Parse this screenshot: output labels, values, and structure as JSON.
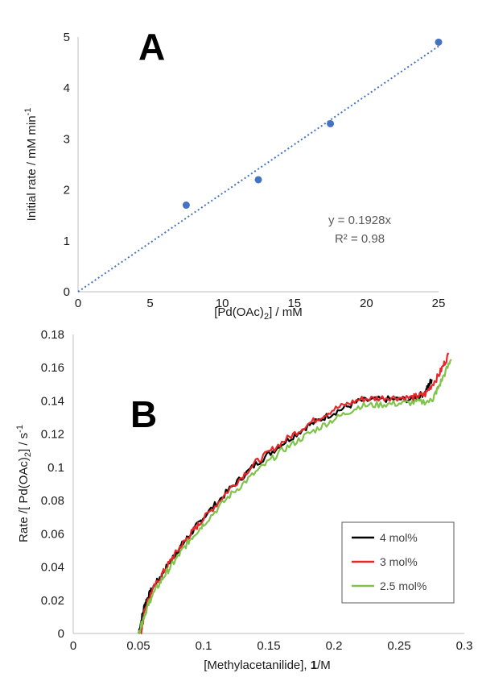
{
  "chart_data": [
    {
      "type": "scatter",
      "panel_label": "A",
      "xlabel": "[Pd(OAc)2] / mM",
      "ylabel": "Initial rate / mM min-1",
      "xlim": [
        0,
        25
      ],
      "ylim": [
        0,
        5
      ],
      "x_ticks": [
        "0",
        "5",
        "10",
        "15",
        "20",
        "25"
      ],
      "y_ticks": [
        "0",
        "1",
        "2",
        "3",
        "4",
        "5"
      ],
      "grid": false,
      "series": [
        {
          "color": "#4472c4",
          "points": [
            {
              "x": 7.5,
              "y": 1.7
            },
            {
              "x": 12.5,
              "y": 2.2
            },
            {
              "x": 17.5,
              "y": 3.3
            },
            {
              "x": 25,
              "y": 4.9
            }
          ]
        }
      ],
      "trendline": {
        "slope": 0.1928,
        "color": "#4472c4",
        "style": "dotted",
        "equation": "y = 0.1928x",
        "r_squared": "R² = 0.98"
      }
    },
    {
      "type": "line",
      "panel_label": "B",
      "xlabel": "[Methylacetanilide], 1/M",
      "ylabel": "Rate /[ Pd(OAc)2] / s-1",
      "xlim": [
        0,
        0.3
      ],
      "ylim": [
        0,
        0.18
      ],
      "x_ticks": [
        "0",
        "0.05",
        "0.1",
        "0.15",
        "0.2",
        "0.25",
        "0.3"
      ],
      "y_ticks": [
        "0",
        "0.02",
        "0.04",
        "0.06",
        "0.08",
        "0.1",
        "0.12",
        "0.14",
        "0.16",
        "0.18"
      ],
      "grid": false,
      "legend": {
        "position": "bottom-right",
        "boxed": true
      },
      "series": [
        {
          "name": "4 mol%",
          "color": "#000000",
          "x": [
            0.05,
            0.055,
            0.06,
            0.07,
            0.08,
            0.09,
            0.1,
            0.12,
            0.14,
            0.16,
            0.18,
            0.2,
            0.22,
            0.24,
            0.26,
            0.27,
            0.275
          ],
          "y": [
            0.0,
            0.018,
            0.026,
            0.038,
            0.05,
            0.06,
            0.07,
            0.087,
            0.102,
            0.114,
            0.125,
            0.133,
            0.14,
            0.141,
            0.141,
            0.145,
            0.153
          ]
        },
        {
          "name": "3 mol%",
          "color": "#e8262a",
          "x": [
            0.052,
            0.055,
            0.06,
            0.07,
            0.08,
            0.09,
            0.1,
            0.12,
            0.14,
            0.16,
            0.18,
            0.2,
            0.22,
            0.24,
            0.26,
            0.27,
            0.28,
            0.288
          ],
          "y": [
            0.0,
            0.015,
            0.025,
            0.038,
            0.05,
            0.06,
            0.069,
            0.087,
            0.103,
            0.115,
            0.126,
            0.135,
            0.141,
            0.142,
            0.142,
            0.144,
            0.155,
            0.168
          ]
        },
        {
          "name": "2.5 mol%",
          "color": "#7fc44a",
          "x": [
            0.05,
            0.055,
            0.06,
            0.07,
            0.08,
            0.09,
            0.1,
            0.12,
            0.14,
            0.16,
            0.18,
            0.2,
            0.22,
            0.24,
            0.26,
            0.275,
            0.28,
            0.29
          ],
          "y": [
            0.0,
            0.012,
            0.022,
            0.035,
            0.046,
            0.057,
            0.066,
            0.083,
            0.097,
            0.11,
            0.12,
            0.129,
            0.137,
            0.138,
            0.139,
            0.14,
            0.148,
            0.165
          ]
        }
      ]
    }
  ]
}
